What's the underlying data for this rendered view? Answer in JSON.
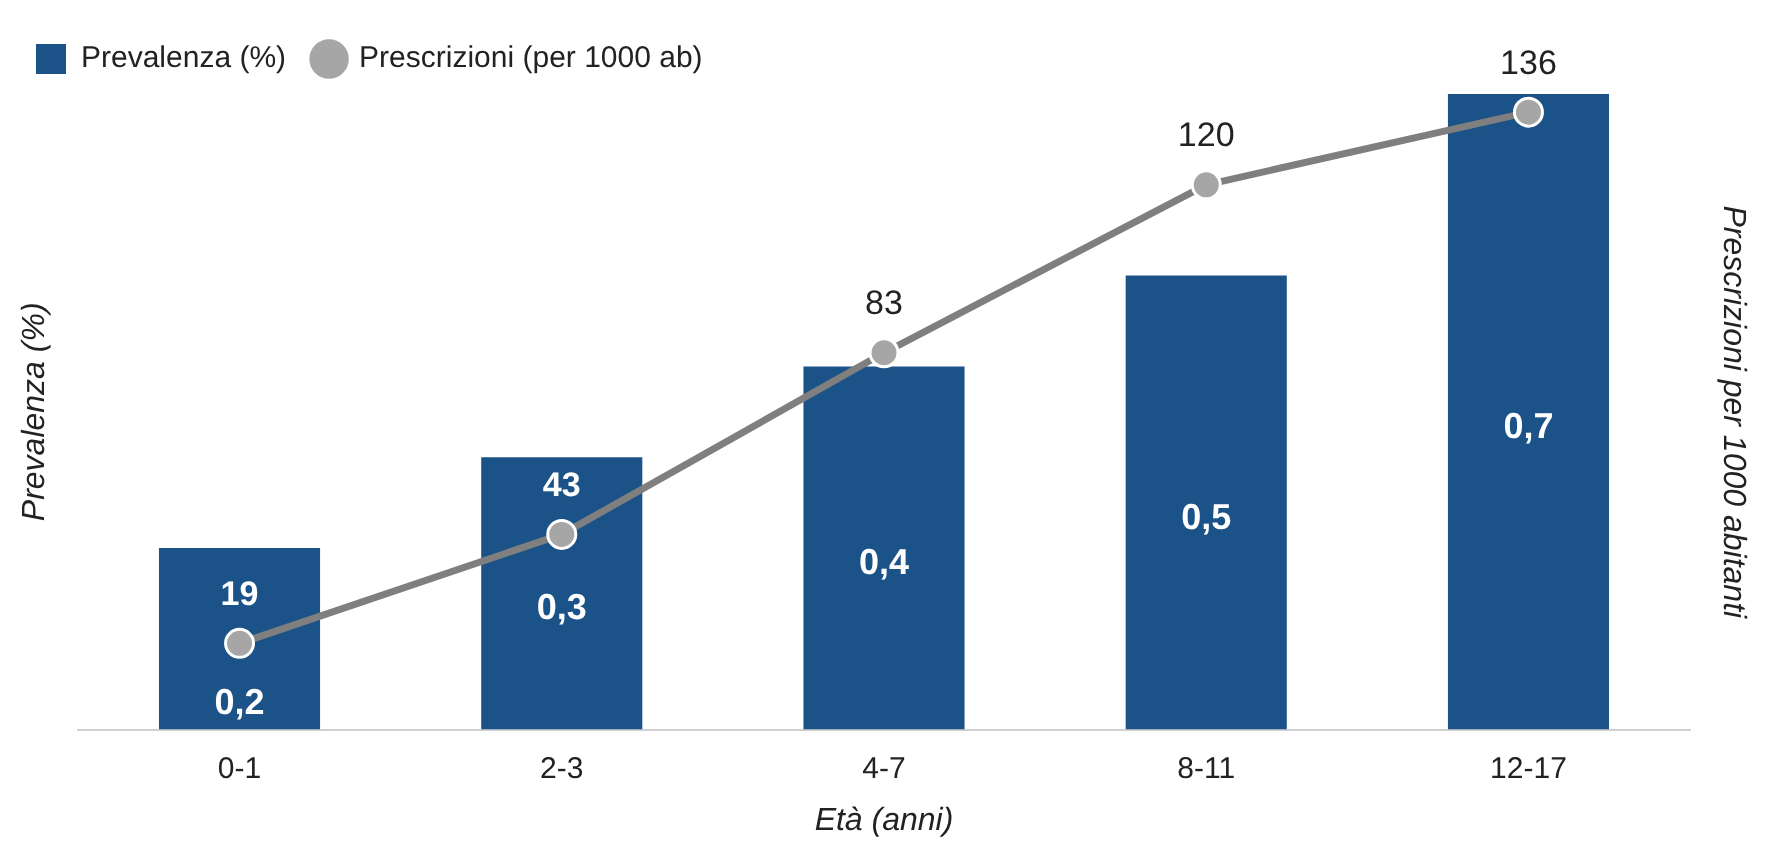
{
  "chart_data": {
    "type": "bar",
    "categories": [
      "0-1",
      "2-3",
      "4-7",
      "8-11",
      "12-17"
    ],
    "xlabel": "Età (anni)",
    "ylabel": "Prevalenza (%)",
    "y2label": "Prescrizioni per 1000 abitanti",
    "tick_labels": "x",
    "grid": false,
    "legend": "top left",
    "marker": "circle",
    "line_style": "solid",
    "series": [
      {
        "name": "Prevalenza (%)",
        "color": "#1b5287",
        "values": [
          0.2,
          0.3,
          0.4,
          0.5,
          0.7
        ],
        "value_labels": [
          "0,2",
          "0,3",
          "0,4",
          "0,5",
          "0,7"
        ]
      },
      {
        "name": "Prescrizioni (per 1000 ab)",
        "type": "line",
        "axis": "y2",
        "color": "#7f7f7f",
        "values": [
          19,
          43,
          83,
          120,
          136
        ],
        "value_labels": [
          "19",
          "43",
          "83",
          "120",
          "136"
        ]
      }
    ]
  }
}
